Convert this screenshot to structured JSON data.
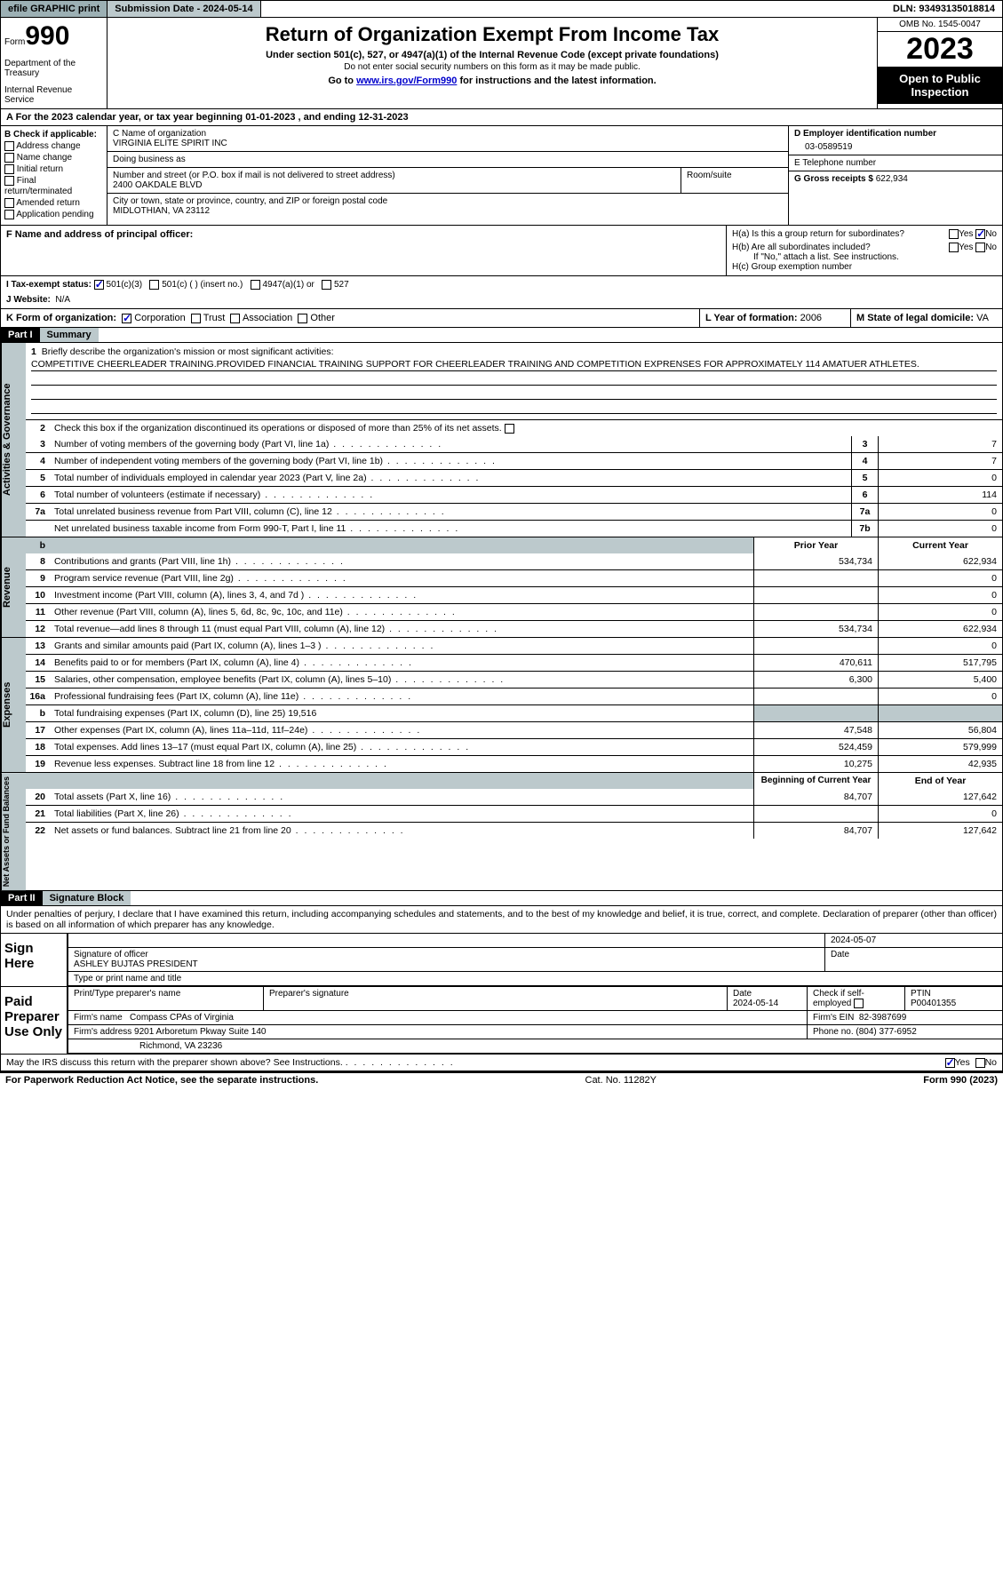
{
  "topbar": {
    "efile": "efile GRAPHIC print",
    "submission_label": "Submission Date - 2024-05-14",
    "dln": "DLN: 93493135018814"
  },
  "header": {
    "form_prefix": "Form",
    "form_num": "990",
    "dept": "Department of the Treasury",
    "irs": "Internal Revenue Service",
    "title": "Return of Organization Exempt From Income Tax",
    "sub1": "Under section 501(c), 527, or 4947(a)(1) of the Internal Revenue Code (except private foundations)",
    "sub2": "Do not enter social security numbers on this form as it may be made public.",
    "sub3_pre": "Go to ",
    "sub3_link": "www.irs.gov/Form990",
    "sub3_post": " for instructions and the latest information.",
    "omb": "OMB No. 1545-0047",
    "year": "2023",
    "inspect": "Open to Public Inspection"
  },
  "row_a": "A For the 2023 calendar year, or tax year beginning 01-01-2023    , and ending 12-31-2023",
  "col_b": {
    "label": "B Check if applicable:",
    "items": [
      "Address change",
      "Name change",
      "Initial return",
      "Final return/terminated",
      "Amended return",
      "Application pending"
    ]
  },
  "col_c": {
    "name_label": "C Name of organization",
    "name": "VIRGINIA ELITE SPIRIT INC",
    "dba_label": "Doing business as",
    "dba": "",
    "addr_label": "Number and street (or P.O. box if mail is not delivered to street address)",
    "addr": "2400 OAKDALE BLVD",
    "room_label": "Room/suite",
    "city_label": "City or town, state or province, country, and ZIP or foreign postal code",
    "city": "MIDLOTHIAN, VA  23112"
  },
  "col_de": {
    "d_label": "D Employer identification number",
    "d_val": "03-0589519",
    "e_label": "E Telephone number",
    "e_val": "",
    "g_label": "G Gross receipts $",
    "g_val": "622,934"
  },
  "row_f": {
    "label": "F  Name and address of principal officer:",
    "val": ""
  },
  "row_h": {
    "ha": "H(a)  Is this a group return for subordinates?",
    "hb": "H(b)  Are all subordinates included?",
    "hb_note": "If \"No,\" attach a list. See instructions.",
    "hc": "H(c)  Group exemption number"
  },
  "row_i": {
    "label": "I     Tax-exempt status:",
    "opts": [
      "501(c)(3)",
      "501(c) (  ) (insert no.)",
      "4947(a)(1) or",
      "527"
    ]
  },
  "row_j": {
    "label": "J    Website:",
    "val": "N/A"
  },
  "row_k": {
    "label": "K Form of organization:",
    "opts": [
      "Corporation",
      "Trust",
      "Association",
      "Other"
    ],
    "l_label": "L Year of formation:",
    "l_val": "2006",
    "m_label": "M State of legal domicile:",
    "m_val": "VA"
  },
  "part1": {
    "header_num": "Part I",
    "header_title": "Summary",
    "line1_label": "Briefly describe the organization's mission or most significant activities:",
    "line1_text": "COMPETITIVE CHEERLEADER TRAINING.PROVIDED FINANCIAL TRAINING SUPPORT FOR CHEERLEADER TRAINING AND COMPETITION EXPRENSES FOR APPROXIMATELY 114 AMATUER ATHLETES.",
    "line2": "Check this box      if the organization discontinued its operations or disposed of more than 25% of its net assets.",
    "lines_gov": [
      {
        "n": "3",
        "t": "Number of voting members of the governing body (Part VI, line 1a)",
        "b": "3",
        "v": "7"
      },
      {
        "n": "4",
        "t": "Number of independent voting members of the governing body (Part VI, line 1b)",
        "b": "4",
        "v": "7"
      },
      {
        "n": "5",
        "t": "Total number of individuals employed in calendar year 2023 (Part V, line 2a)",
        "b": "5",
        "v": "0"
      },
      {
        "n": "6",
        "t": "Total number of volunteers (estimate if necessary)",
        "b": "6",
        "v": "114"
      },
      {
        "n": "7a",
        "t": "Total unrelated business revenue from Part VIII, column (C), line 12",
        "b": "7a",
        "v": "0"
      },
      {
        "n": "",
        "t": "Net unrelated business taxable income from Form 990-T, Part I, line 11",
        "b": "7b",
        "v": "0"
      }
    ],
    "col_hdr1": "Prior Year",
    "col_hdr2": "Current Year",
    "lines_rev": [
      {
        "n": "8",
        "t": "Contributions and grants (Part VIII, line 1h)",
        "p": "534,734",
        "c": "622,934"
      },
      {
        "n": "9",
        "t": "Program service revenue (Part VIII, line 2g)",
        "p": "",
        "c": "0"
      },
      {
        "n": "10",
        "t": "Investment income (Part VIII, column (A), lines 3, 4, and 7d )",
        "p": "",
        "c": "0"
      },
      {
        "n": "11",
        "t": "Other revenue (Part VIII, column (A), lines 5, 6d, 8c, 9c, 10c, and 11e)",
        "p": "",
        "c": "0"
      },
      {
        "n": "12",
        "t": "Total revenue—add lines 8 through 11 (must equal Part VIII, column (A), line 12)",
        "p": "534,734",
        "c": "622,934"
      }
    ],
    "lines_exp": [
      {
        "n": "13",
        "t": "Grants and similar amounts paid (Part IX, column (A), lines 1–3 )",
        "p": "",
        "c": "0"
      },
      {
        "n": "14",
        "t": "Benefits paid to or for members (Part IX, column (A), line 4)",
        "p": "470,611",
        "c": "517,795"
      },
      {
        "n": "15",
        "t": "Salaries, other compensation, employee benefits (Part IX, column (A), lines 5–10)",
        "p": "6,300",
        "c": "5,400"
      },
      {
        "n": "16a",
        "t": "Professional fundraising fees (Part IX, column (A), line 11e)",
        "p": "",
        "c": "0"
      },
      {
        "n": "b",
        "t": "Total fundraising expenses (Part IX, column (D), line 25) 19,516",
        "p": "SHADE",
        "c": "SHADE"
      },
      {
        "n": "17",
        "t": "Other expenses (Part IX, column (A), lines 11a–11d, 11f–24e)",
        "p": "47,548",
        "c": "56,804"
      },
      {
        "n": "18",
        "t": "Total expenses. Add lines 13–17 (must equal Part IX, column (A), line 25)",
        "p": "524,459",
        "c": "579,999"
      },
      {
        "n": "19",
        "t": "Revenue less expenses. Subtract line 18 from line 12",
        "p": "10,275",
        "c": "42,935"
      }
    ],
    "col_hdr3": "Beginning of Current Year",
    "col_hdr4": "End of Year",
    "lines_net": [
      {
        "n": "20",
        "t": "Total assets (Part X, line 16)",
        "p": "84,707",
        "c": "127,642"
      },
      {
        "n": "21",
        "t": "Total liabilities (Part X, line 26)",
        "p": "",
        "c": "0"
      },
      {
        "n": "22",
        "t": "Net assets or fund balances. Subtract line 21 from line 20",
        "p": "84,707",
        "c": "127,642"
      }
    ],
    "vlabels": {
      "gov": "Activities & Governance",
      "rev": "Revenue",
      "exp": "Expenses",
      "net": "Net Assets or Fund Balances"
    }
  },
  "part2": {
    "header_num": "Part II",
    "header_title": "Signature Block",
    "decl": "Under penalties of perjury, I declare that I have examined this return, including accompanying schedules and statements, and to the best of my knowledge and belief, it is true, correct, and complete. Declaration of preparer (other than officer) is based on all information of which preparer has any knowledge.",
    "sign_here": "Sign Here",
    "sig_officer": "Signature of officer",
    "sig_date": "2024-05-07",
    "officer_name": "ASHLEY BUJTAS  PRESIDENT",
    "type_label": "Type or print name and title",
    "date_label": "Date",
    "paid": "Paid Preparer Use Only",
    "prep_name_label": "Print/Type preparer's name",
    "prep_sig_label": "Preparer's signature",
    "prep_date": "2024-05-14",
    "check_se": "Check        if self-employed",
    "ptin_label": "PTIN",
    "ptin": "P00401355",
    "firm_name_label": "Firm's name",
    "firm_name": "Compass CPAs of Virginia",
    "firm_ein_label": "Firm's EIN",
    "firm_ein": "82-3987699",
    "firm_addr_label": "Firm's address",
    "firm_addr1": "9201 Arboretum Pkway Suite 140",
    "firm_addr2": "Richmond, VA  23236",
    "phone_label": "Phone no.",
    "phone": "(804) 377-6952",
    "discuss": "May the IRS discuss this return with the preparer shown above? See Instructions."
  },
  "footer": {
    "left": "For Paperwork Reduction Act Notice, see the separate instructions.",
    "mid": "Cat. No. 11282Y",
    "right": "Form 990 (2023)"
  }
}
